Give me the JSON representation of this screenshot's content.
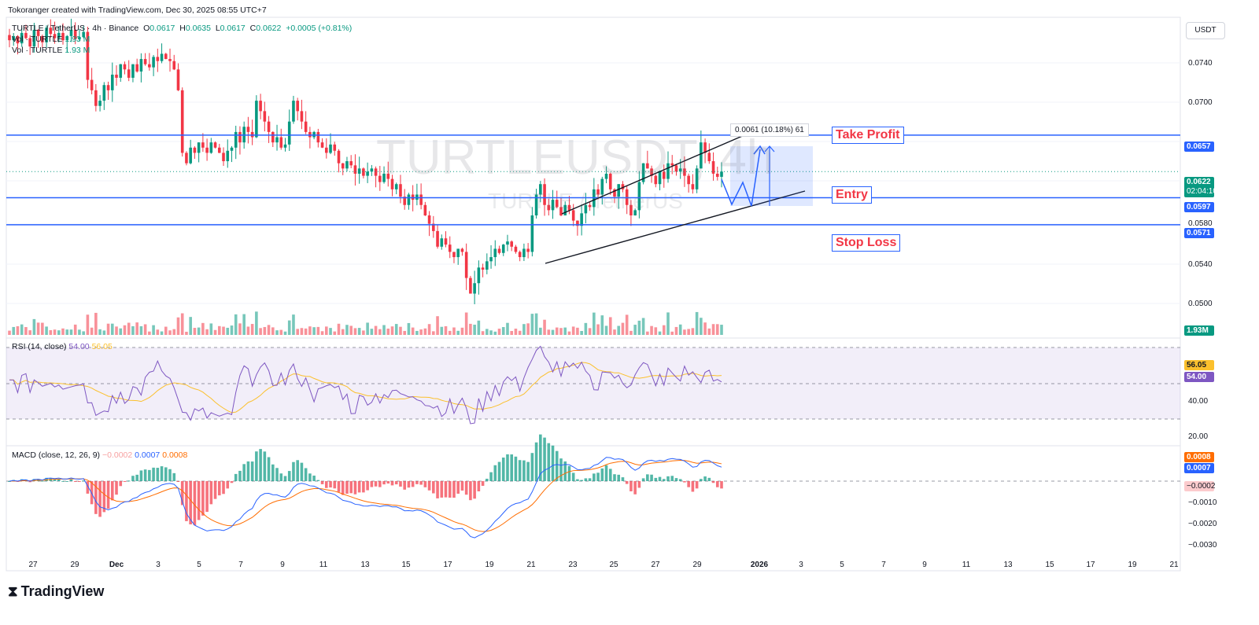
{
  "credit": "Tokoranger created with TradingView.com, Dec 30, 2025 08:55 UTC+7",
  "symbol_line": {
    "symbol": "TURTLE / TetherUS · 4h · Binance",
    "o_label": "O",
    "o": "0.0617",
    "h_label": "H",
    "h": "0.0635",
    "l_label": "L",
    "l": "0.0617",
    "c_label": "C",
    "c": "0.0622",
    "change": "+0.0005 (+0.81%)"
  },
  "vol_lines": [
    {
      "label": "Vol · TURTLE",
      "value": "1.93 M"
    },
    {
      "label": "Vol · TURTLE",
      "value": "1.93 M"
    }
  ],
  "currency_button": "USDT",
  "watermark": {
    "main": "TURTLEUSDT, 4h",
    "sub": "TURTLE / TetherUS"
  },
  "levels": [
    {
      "label": "Take Profit",
      "price": 0.0657,
      "tag": "0.0657"
    },
    {
      "label": "Entry",
      "price": 0.0597,
      "tag": "0.0597"
    },
    {
      "label": "Stop Loss",
      "price": 0.0571,
      "tag": "0.0571"
    }
  ],
  "current_price": {
    "value": "0.0622",
    "countdown": "02:04:10"
  },
  "measure_label": "0.0061 (10.18%) 61",
  "volume_tag": "1.93M",
  "rsi": {
    "title": "RSI (14, close)",
    "value": "54.00",
    "ma": "56.05",
    "ticks": [
      "40.00",
      "20.00"
    ]
  },
  "macd": {
    "title": "MACD (close, 12, 26, 9)",
    "hist": "−0.0002",
    "macd": "0.0007",
    "signal": "0.0008",
    "tag_signal": "0.0008",
    "tag_macd": "0.0007",
    "tag_hist": "−0.0002",
    "ticks": [
      "−0.0010",
      "−0.0020",
      "−0.0030"
    ]
  },
  "price_axis_ticks": [
    "0.0740",
    "0.0700",
    "0.0580",
    "0.0540",
    "0.0500"
  ],
  "x_axis_labels": [
    "27",
    "29",
    "Dec",
    "3",
    "5",
    "7",
    "9",
    "11",
    "13",
    "15",
    "17",
    "19",
    "21",
    "23",
    "25",
    "27",
    "29",
    "2026",
    "3",
    "5",
    "7",
    "9",
    "11",
    "13",
    "15",
    "17",
    "19",
    "21"
  ],
  "brand": "TradingView",
  "colors": {
    "up": "#089981",
    "down": "#f23645",
    "level": "#2962ff",
    "rsi": "#7e57c2",
    "rsi_ma": "#fbc02d",
    "macd": "#2962ff",
    "signal": "#ff6d00"
  },
  "chart_data": {
    "type": "candlestick",
    "timeframe": "4h",
    "x_range": [
      "Nov 26, 2025",
      "Jan 21, 2026"
    ],
    "price_range": [
      0.048,
      0.077
    ],
    "closes": [
      0.0748,
      0.0752,
      0.0745,
      0.0755,
      0.075,
      0.0742,
      0.0758,
      0.0752,
      0.0746,
      0.076,
      0.0754,
      0.075,
      0.0755,
      0.0748,
      0.0752,
      0.0758,
      0.0749,
      0.0751,
      0.0756,
      0.071,
      0.07,
      0.0685,
      0.069,
      0.0705,
      0.07,
      0.0715,
      0.0712,
      0.0725,
      0.072,
      0.0712,
      0.0725,
      0.0718,
      0.073,
      0.0725,
      0.0722,
      0.0732,
      0.0728,
      0.0735,
      0.073,
      0.0728,
      0.072,
      0.07,
      0.064,
      0.063,
      0.0645,
      0.064,
      0.065,
      0.0645,
      0.064,
      0.065,
      0.0645,
      0.064,
      0.0632,
      0.0642,
      0.0645,
      0.066,
      0.065,
      0.0665,
      0.066,
      0.0655,
      0.069,
      0.068,
      0.067,
      0.066,
      0.065,
      0.0655,
      0.0645,
      0.0648,
      0.067,
      0.069,
      0.068,
      0.067,
      0.066,
      0.0655,
      0.066,
      0.065,
      0.0645,
      0.064,
      0.0648,
      0.0642,
      0.063,
      0.0625,
      0.0632,
      0.0628,
      0.062,
      0.0625,
      0.0618,
      0.0622,
      0.0625,
      0.0618,
      0.0612,
      0.062,
      0.0615,
      0.0605,
      0.061,
      0.0598,
      0.059,
      0.06,
      0.0595,
      0.06,
      0.059,
      0.058,
      0.0572,
      0.0565,
      0.055,
      0.0558,
      0.0552,
      0.0545,
      0.054,
      0.0548,
      0.0545,
      0.052,
      0.0505,
      0.0515,
      0.053,
      0.0528,
      0.0536,
      0.054,
      0.0548,
      0.0544,
      0.0552,
      0.0555,
      0.055,
      0.0545,
      0.054,
      0.0548,
      0.0545,
      0.058,
      0.06,
      0.061,
      0.059,
      0.0585,
      0.0595,
      0.0588,
      0.058,
      0.059,
      0.0585,
      0.0575,
      0.057,
      0.0582,
      0.059,
      0.0588,
      0.0605,
      0.06,
      0.0615,
      0.062,
      0.0605,
      0.0598,
      0.061,
      0.0605,
      0.059,
      0.058,
      0.0585,
      0.0612,
      0.063,
      0.0625,
      0.0618,
      0.061,
      0.0622,
      0.0615,
      0.063,
      0.0628,
      0.0622,
      0.0625,
      0.0618,
      0.061,
      0.0605,
      0.0625,
      0.065,
      0.064,
      0.0632,
      0.062,
      0.0617,
      0.0622
    ]
  }
}
